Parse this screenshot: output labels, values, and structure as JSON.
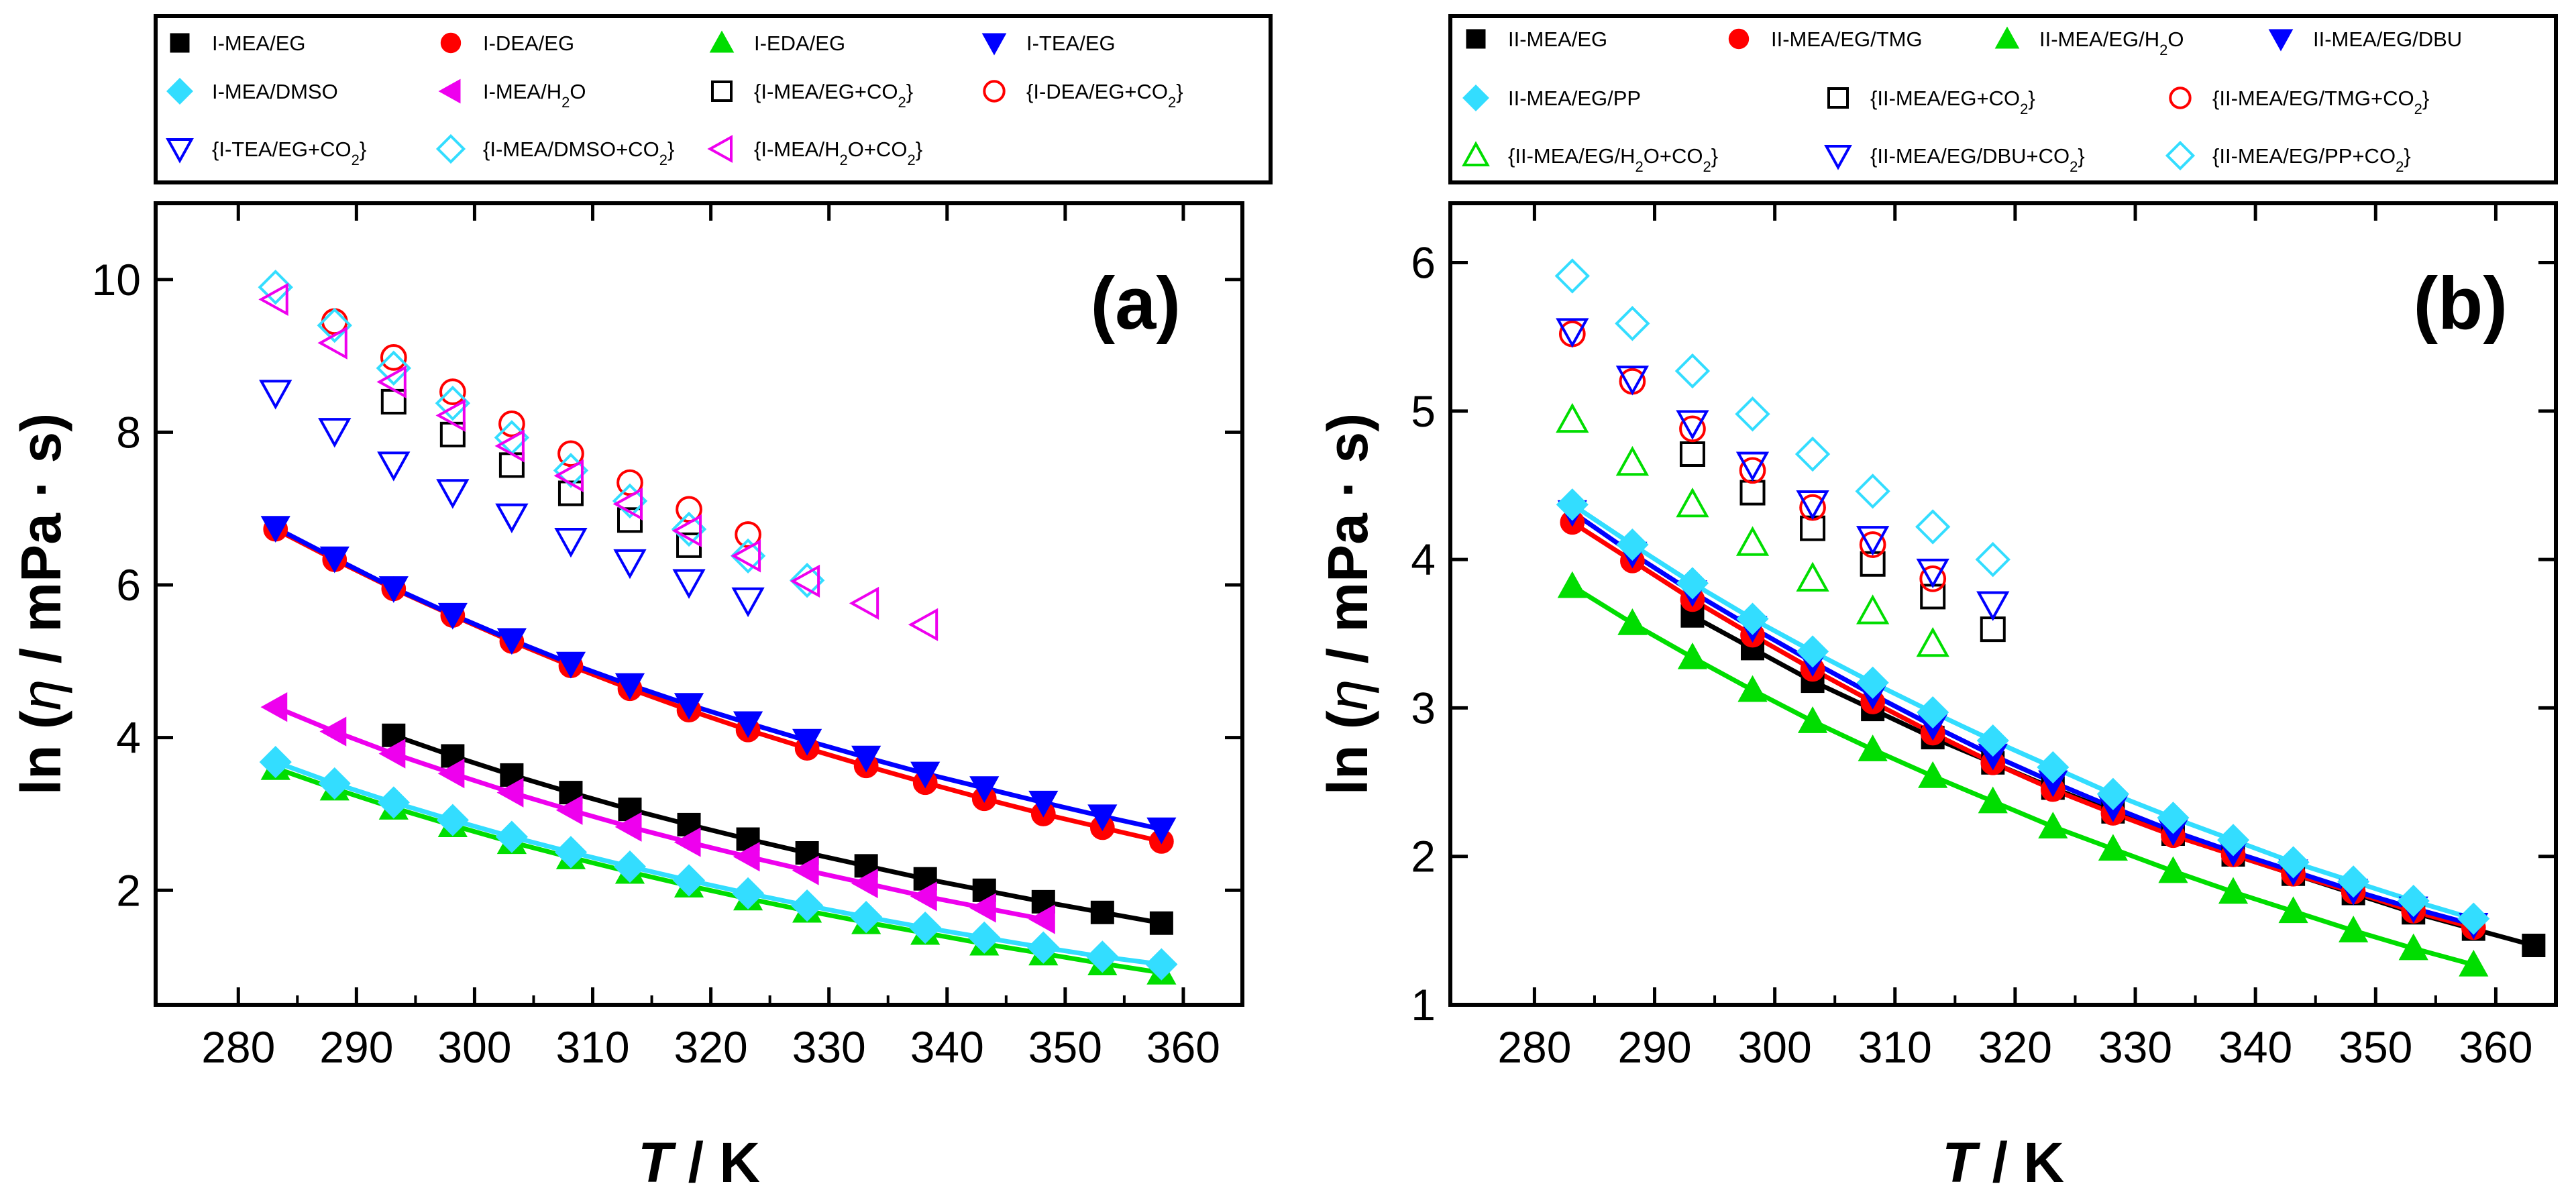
{
  "chart_data": [
    {
      "panel": "left",
      "type": "scatter",
      "panel_label": "(a)",
      "xlabel_italic": "T",
      "xlabel_rest": " / K",
      "ylabel_prefix": "ln (",
      "ylabel_symbol": "η",
      "ylabel_suffix": " / mPa · s)",
      "xlim": [
        273,
        365
      ],
      "ylim": [
        0.5,
        11.0
      ],
      "xticks": [
        280,
        290,
        300,
        310,
        320,
        330,
        340,
        350,
        360
      ],
      "yticks": [
        2,
        4,
        6,
        8,
        10
      ],
      "legend_position": "above-plot",
      "series": [
        {
          "name": "I-MEA/EG",
          "marker": "square",
          "filled": true,
          "color": "#000000",
          "fit": true,
          "x": [
            293.15,
            298.15,
            303.15,
            308.15,
            313.15,
            318.15,
            323.15,
            328.15,
            333.15,
            338.15,
            343.15,
            348.15,
            353.15,
            358.15
          ],
          "y": [
            4.03,
            3.76,
            3.51,
            3.28,
            3.06,
            2.86,
            2.67,
            2.49,
            2.32,
            2.15,
            2.0,
            1.85,
            1.71,
            1.57
          ]
        },
        {
          "name": "I-DEA/EG",
          "marker": "circle",
          "filled": true,
          "color": "#ff0000",
          "fit": true,
          "x": [
            283.15,
            288.15,
            293.15,
            298.15,
            303.15,
            308.15,
            313.15,
            318.15,
            323.15,
            328.15,
            333.15,
            338.15,
            343.15,
            348.15,
            353.15,
            358.15
          ],
          "y": [
            6.73,
            6.33,
            5.95,
            5.6,
            5.26,
            4.94,
            4.64,
            4.36,
            4.1,
            3.86,
            3.63,
            3.41,
            3.2,
            3.0,
            2.82,
            2.64
          ]
        },
        {
          "name": "I-EDA/EG",
          "marker": "triangle-up",
          "filled": true,
          "color": "#00dd00",
          "fit": true,
          "x": [
            283.15,
            288.15,
            293.15,
            298.15,
            303.15,
            308.15,
            313.15,
            318.15,
            323.15,
            328.15,
            333.15,
            338.15,
            343.15,
            348.15,
            353.15,
            358.15
          ],
          "y": [
            3.6,
            3.33,
            3.08,
            2.85,
            2.63,
            2.43,
            2.24,
            2.06,
            1.89,
            1.73,
            1.58,
            1.44,
            1.3,
            1.17,
            1.04,
            0.92
          ]
        },
        {
          "name": "I-TEA/EG",
          "marker": "triangle-down",
          "filled": true,
          "color": "#0000ff",
          "fit": true,
          "x": [
            283.15,
            288.15,
            293.15,
            298.15,
            303.15,
            308.15,
            313.15,
            318.15,
            323.15,
            328.15,
            333.15,
            338.15,
            343.15,
            348.15,
            353.15,
            358.15
          ],
          "y": [
            6.75,
            6.35,
            5.96,
            5.61,
            5.28,
            4.97,
            4.69,
            4.43,
            4.19,
            3.96,
            3.74,
            3.53,
            3.34,
            3.15,
            2.97,
            2.8
          ]
        },
        {
          "name": "I-MEA/DMSO",
          "marker": "diamond",
          "filled": true,
          "color": "#33ddff",
          "fit": true,
          "x": [
            283.15,
            288.15,
            293.15,
            298.15,
            303.15,
            308.15,
            313.15,
            318.15,
            323.15,
            328.15,
            333.15,
            338.15,
            343.15,
            348.15,
            353.15,
            358.15
          ],
          "y": [
            3.68,
            3.4,
            3.15,
            2.92,
            2.7,
            2.5,
            2.31,
            2.13,
            1.96,
            1.8,
            1.65,
            1.51,
            1.38,
            1.25,
            1.13,
            1.03
          ]
        },
        {
          "name": "I-MEA/H",
          "sub": "2",
          "tail": "O",
          "marker": "triangle-left",
          "filled": true,
          "color": "#ee00ee",
          "fit": true,
          "x": [
            283.15,
            288.15,
            293.15,
            298.15,
            303.15,
            308.15,
            313.15,
            318.15,
            323.15,
            328.15,
            333.15,
            338.15,
            343.15,
            348.15
          ],
          "y": [
            4.4,
            4.08,
            3.79,
            3.53,
            3.28,
            3.05,
            2.83,
            2.63,
            2.44,
            2.26,
            2.09,
            1.92,
            1.77,
            1.62
          ]
        },
        {
          "name": "{I-MEA/EG+CO",
          "sub": "2",
          "tail": "}",
          "marker": "square",
          "filled": false,
          "color": "#000000",
          "fit": false,
          "x": [
            293.15,
            298.15,
            303.15,
            308.15,
            313.15,
            318.15
          ],
          "y": [
            8.4,
            7.97,
            7.57,
            7.2,
            6.85,
            6.52
          ]
        },
        {
          "name": "{I-DEA/EG+CO",
          "sub": "2",
          "tail": "}",
          "marker": "circle",
          "filled": false,
          "color": "#ff0000",
          "fit": false,
          "x": [
            288.15,
            293.15,
            298.15,
            303.15,
            308.15,
            313.15,
            318.15,
            323.15
          ],
          "y": [
            9.45,
            8.98,
            8.53,
            8.11,
            7.72,
            7.34,
            6.99,
            6.66
          ]
        },
        {
          "name": "{I-TEA/EG+CO",
          "sub": "2",
          "tail": "}",
          "marker": "triangle-down",
          "filled": false,
          "color": "#0000ff",
          "fit": false,
          "x": [
            283.15,
            288.15,
            293.15,
            298.15,
            303.15,
            308.15,
            313.15,
            318.15,
            323.15
          ],
          "y": [
            8.52,
            8.02,
            7.58,
            7.22,
            6.9,
            6.58,
            6.3,
            6.04,
            5.8
          ]
        },
        {
          "name": "{I-MEA/DMSO+CO",
          "sub": "2",
          "tail": "}",
          "marker": "diamond",
          "filled": false,
          "color": "#33ddff",
          "fit": false,
          "x": [
            283.15,
            288.15,
            293.15,
            298.15,
            303.15,
            308.15,
            313.15,
            318.15,
            323.15,
            328.15
          ],
          "y": [
            9.9,
            9.4,
            8.84,
            8.38,
            7.93,
            7.5,
            7.1,
            6.73,
            6.38,
            6.06
          ]
        },
        {
          "name": "{I-MEA/H",
          "sub": "2",
          "tail": "O+CO",
          "sub2": "2",
          "tail2": "}",
          "marker": "triangle-left",
          "filled": false,
          "color": "#ee00ee",
          "fit": false,
          "x": [
            283.15,
            288.15,
            293.15,
            298.15,
            303.15,
            308.15,
            313.15,
            318.15,
            323.15,
            328.15,
            333.15,
            338.15
          ],
          "y": [
            9.74,
            9.17,
            8.66,
            8.22,
            7.82,
            7.43,
            7.06,
            6.71,
            6.38,
            6.05,
            5.76,
            5.48
          ]
        }
      ]
    },
    {
      "panel": "right",
      "type": "scatter",
      "panel_label": "(b)",
      "xlabel_italic": "T",
      "xlabel_rest": " / K",
      "ylabel_prefix": "ln (",
      "ylabel_symbol": "η",
      "ylabel_suffix": " / mPa · s)",
      "xlim": [
        273,
        365
      ],
      "ylim": [
        1.0,
        6.4
      ],
      "xticks": [
        280,
        290,
        300,
        310,
        320,
        330,
        340,
        350,
        360
      ],
      "yticks": [
        1,
        2,
        3,
        4,
        5,
        6
      ],
      "legend_position": "above-plot",
      "series": [
        {
          "name": "II-MEA/EG",
          "marker": "square",
          "filled": true,
          "color": "#000000",
          "fit": true,
          "x": [
            293.15,
            298.15,
            303.15,
            308.15,
            313.15,
            318.15,
            323.15,
            328.15,
            333.15,
            338.15,
            343.15,
            348.15,
            353.15,
            358.15,
            363.15
          ],
          "y": [
            3.62,
            3.4,
            3.18,
            2.99,
            2.8,
            2.63,
            2.46,
            2.3,
            2.15,
            2.01,
            1.88,
            1.75,
            1.62,
            1.51,
            1.4
          ]
        },
        {
          "name": "II-MEA/EG/TMG",
          "marker": "circle",
          "filled": true,
          "color": "#ff0000",
          "fit": true,
          "x": [
            283.15,
            288.15,
            293.15,
            298.15,
            303.15,
            308.15,
            313.15,
            318.15,
            323.15,
            328.15,
            333.15,
            338.15,
            343.15,
            348.15,
            353.15,
            358.15
          ],
          "y": [
            4.25,
            3.99,
            3.73,
            3.49,
            3.26,
            3.04,
            2.83,
            2.63,
            2.45,
            2.29,
            2.14,
            2.01,
            1.88,
            1.76,
            1.63,
            1.52
          ]
        },
        {
          "name": "II-MEA/EG/H",
          "sub": "2",
          "tail": "O",
          "marker": "triangle-up",
          "filled": true,
          "color": "#00dd00",
          "fit": true,
          "x": [
            283.15,
            288.15,
            293.15,
            298.15,
            303.15,
            308.15,
            313.15,
            318.15,
            323.15,
            328.15,
            333.15,
            338.15,
            343.15,
            348.15,
            353.15,
            358.15
          ],
          "y": [
            3.82,
            3.57,
            3.34,
            3.12,
            2.91,
            2.72,
            2.54,
            2.37,
            2.2,
            2.05,
            1.9,
            1.76,
            1.63,
            1.5,
            1.38,
            1.27
          ]
        },
        {
          "name": "II-MEA/EG/DBU",
          "marker": "triangle-down",
          "filled": true,
          "color": "#0000ff",
          "fit": true,
          "x": [
            283.15,
            288.15,
            293.15,
            298.15,
            303.15,
            308.15,
            313.15,
            318.15,
            323.15,
            328.15,
            333.15,
            338.15,
            343.15,
            348.15,
            353.15,
            358.15
          ],
          "y": [
            4.32,
            4.04,
            3.78,
            3.54,
            3.31,
            3.09,
            2.88,
            2.68,
            2.5,
            2.33,
            2.17,
            2.03,
            1.9,
            1.77,
            1.65,
            1.54
          ]
        },
        {
          "name": "II-MEA/EG/PP",
          "marker": "diamond",
          "filled": true,
          "color": "#33ddff",
          "fit": true,
          "x": [
            283.15,
            288.15,
            293.15,
            298.15,
            303.15,
            308.15,
            313.15,
            318.15,
            323.15,
            328.15,
            333.15,
            338.15,
            343.15,
            348.15,
            353.15,
            358.15
          ],
          "y": [
            4.37,
            4.1,
            3.84,
            3.6,
            3.38,
            3.17,
            2.97,
            2.78,
            2.6,
            2.42,
            2.26,
            2.11,
            1.96,
            1.83,
            1.7,
            1.58
          ]
        },
        {
          "name": "{II-MEA/EG+CO",
          "sub": "2",
          "tail": "}",
          "marker": "square",
          "filled": false,
          "color": "#000000",
          "fit": false,
          "x": [
            293.15,
            298.15,
            303.15,
            308.15,
            313.15,
            318.15
          ],
          "y": [
            4.71,
            4.45,
            4.21,
            3.97,
            3.75,
            3.53
          ]
        },
        {
          "name": "{II-MEA/EG/TMG+CO",
          "sub": "2",
          "tail": "}",
          "marker": "circle",
          "filled": false,
          "color": "#ff0000",
          "fit": false,
          "x": [
            283.15,
            288.15,
            293.15,
            298.15,
            303.15,
            308.15,
            313.15
          ],
          "y": [
            5.52,
            5.2,
            4.88,
            4.6,
            4.35,
            4.1,
            3.87
          ]
        },
        {
          "name": "{II-MEA/EG/H",
          "sub": "2",
          "tail": "O+CO",
          "sub2": "2",
          "tail2": "}",
          "marker": "triangle-up",
          "filled": false,
          "color": "#00dd00",
          "fit": false,
          "x": [
            283.15,
            288.15,
            293.15,
            298.15,
            303.15,
            308.15,
            313.15
          ],
          "y": [
            4.94,
            4.65,
            4.37,
            4.11,
            3.87,
            3.65,
            3.43
          ]
        },
        {
          "name": "{II-MEA/EG/DBU+CO",
          "sub": "2",
          "tail": "}",
          "marker": "triangle-down",
          "filled": false,
          "color": "#0000ff",
          "fit": false,
          "x": [
            283.15,
            288.15,
            293.15,
            298.15,
            303.15,
            308.15,
            313.15,
            318.15
          ],
          "y": [
            5.54,
            5.22,
            4.92,
            4.64,
            4.38,
            4.14,
            3.92,
            3.7
          ]
        },
        {
          "name": "{II-MEA/EG/PP+CO",
          "sub": "2",
          "tail": "}",
          "marker": "diamond",
          "filled": false,
          "color": "#33ddff",
          "fit": false,
          "x": [
            283.15,
            288.15,
            293.15,
            298.15,
            303.15,
            308.15,
            313.15,
            318.15
          ],
          "y": [
            5.91,
            5.59,
            5.27,
            4.98,
            4.71,
            4.46,
            4.22,
            4.0
          ]
        }
      ]
    }
  ]
}
